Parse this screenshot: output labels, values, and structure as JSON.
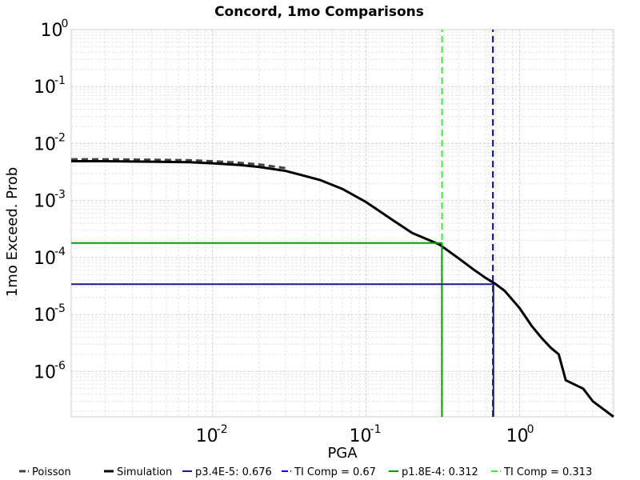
{
  "chart_data": {
    "type": "line",
    "title": "Concord, 1mo Comparisons",
    "xlabel": "PGA",
    "ylabel": "1mo Exceed. Prob",
    "x_scale": "log",
    "y_scale": "log",
    "xlim": [
      0.0012,
      4.1
    ],
    "ylim": [
      1.6e-07,
      1.0
    ],
    "grid": true,
    "legend_position": "bottom",
    "x_ticks": [
      {
        "base": "10",
        "exp": "-2",
        "value": 0.01
      },
      {
        "base": "10",
        "exp": "-1",
        "value": 0.1
      },
      {
        "base": "10",
        "exp": "0",
        "value": 1
      }
    ],
    "y_ticks": [
      {
        "base": "10",
        "exp": "0",
        "value": 1
      },
      {
        "base": "10",
        "exp": "-1",
        "value": 0.1
      },
      {
        "base": "10",
        "exp": "-2",
        "value": 0.01
      },
      {
        "base": "10",
        "exp": "-3",
        "value": 0.001
      },
      {
        "base": "10",
        "exp": "-4",
        "value": 0.0001
      },
      {
        "base": "10",
        "exp": "-5",
        "value": 1e-05
      },
      {
        "base": "10",
        "exp": "-6",
        "value": 1e-06
      }
    ],
    "series": [
      {
        "name": "Poisson",
        "color": "#444444",
        "dash": "dashed",
        "x": [
          0.0012,
          0.002,
          0.004,
          0.007,
          0.01,
          0.015,
          0.02,
          0.03
        ],
        "y": [
          0.0053,
          0.0053,
          0.0052,
          0.0051,
          0.0049,
          0.0046,
          0.0043,
          0.0037
        ]
      },
      {
        "name": "Simulation",
        "color": "#000000",
        "dash": "solid",
        "x": [
          0.0012,
          0.002,
          0.004,
          0.007,
          0.01,
          0.015,
          0.02,
          0.03,
          0.05,
          0.07,
          0.1,
          0.15,
          0.2,
          0.3,
          0.4,
          0.5,
          0.6,
          0.7,
          0.8,
          1.0,
          1.2,
          1.4,
          1.6,
          1.8,
          2.0,
          2.6,
          3.0,
          4.1
        ],
        "y": [
          0.0049,
          0.0049,
          0.0048,
          0.0047,
          0.0045,
          0.0042,
          0.0039,
          0.0033,
          0.0023,
          0.0016,
          0.00094,
          0.00045,
          0.00027,
          0.00017,
          9.7e-05,
          6.2e-05,
          4.4e-05,
          3.4e-05,
          2.6e-05,
          1.3e-05,
          6.3e-06,
          3.8e-06,
          2.6e-06,
          2e-06,
          7e-07,
          5e-07,
          3e-07,
          1.6e-07
        ]
      },
      {
        "name": "p3.4E-5: 0.676",
        "color": "#1a1a8c",
        "dash": "solid",
        "x": [
          0.0012,
          0.676,
          0.676
        ],
        "y": [
          3.4e-05,
          3.4e-05,
          1.6e-07
        ]
      },
      {
        "name": "TI Comp = 0.67",
        "color": "#0000ff",
        "dash": "dashed",
        "x": [
          0.67,
          0.67
        ],
        "y": [
          1.6e-07,
          1.0
        ]
      },
      {
        "name": "p1.8E-4: 0.312",
        "color": "#00a000",
        "dash": "solid",
        "x": [
          0.0012,
          0.312,
          0.312
        ],
        "y": [
          0.00018,
          0.00018,
          1.6e-07
        ]
      },
      {
        "name": "TI Comp = 0.313",
        "color": "#33ee33",
        "dash": "dashed",
        "x": [
          0.313,
          0.313
        ],
        "y": [
          1.6e-07,
          1.0
        ]
      }
    ]
  }
}
